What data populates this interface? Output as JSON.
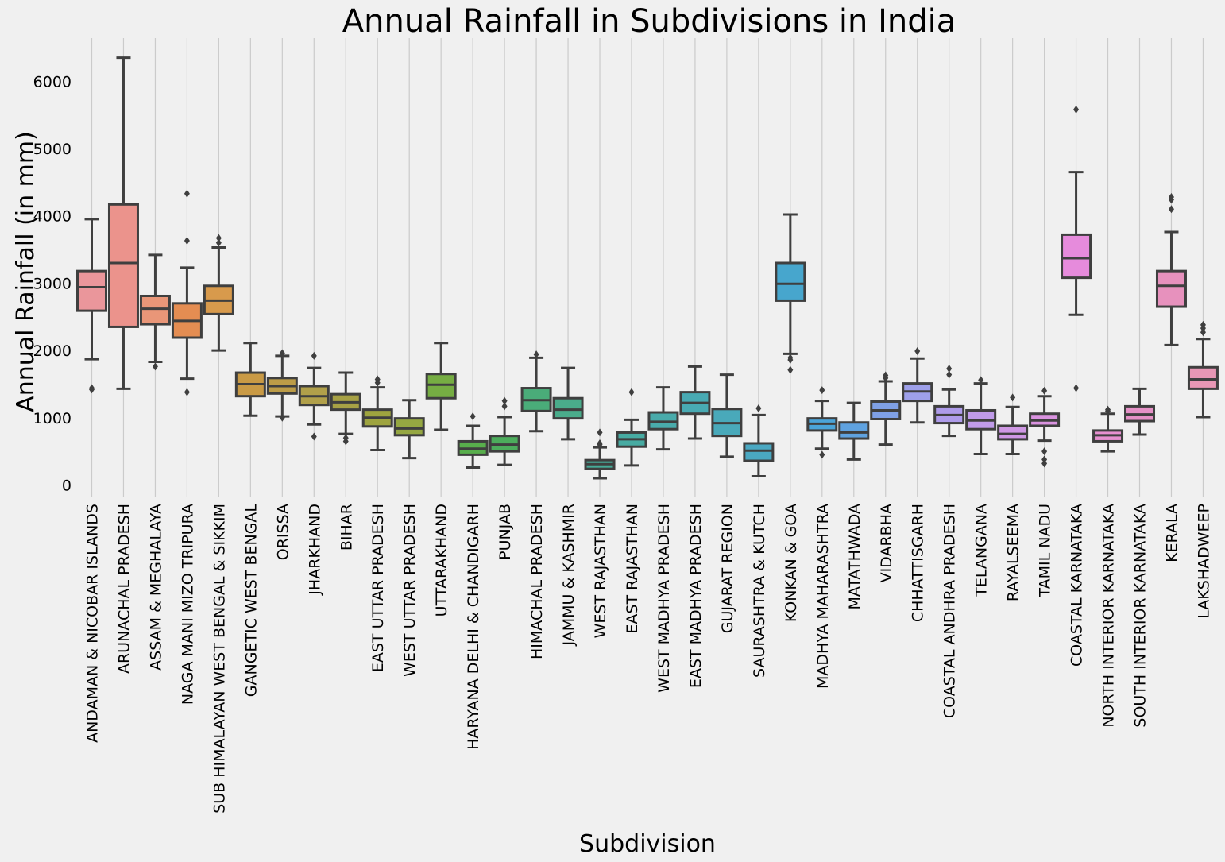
{
  "chart_data": {
    "type": "box",
    "title": "Annual Rainfall in Subdivisions in India",
    "xlabel": "Subdivision",
    "ylabel": "Annual Rainfall (in mm)",
    "ylim": [
      -200,
      6600
    ],
    "yticks": [
      0,
      1000,
      2000,
      3000,
      4000,
      5000,
      6000
    ],
    "grid": "vertical",
    "categories": [
      {
        "name": "ANDAMAN & NICOBAR ISLANDS",
        "color": "#ea969b",
        "q1": 2590,
        "median": 2940,
        "q3": 3180,
        "whisker_low": 1870,
        "whisker_high": 3950,
        "outliers": [
          1440,
          1420
        ]
      },
      {
        "name": "ARUNACHAL PRADESH",
        "color": "#eb938c",
        "q1": 2350,
        "median": 3300,
        "q3": 4170,
        "whisker_low": 1430,
        "whisker_high": 6350,
        "outliers": []
      },
      {
        "name": "ASSAM & MEGHALAYA",
        "color": "#e99678",
        "q1": 2390,
        "median": 2620,
        "q3": 2810,
        "whisker_low": 1830,
        "whisker_high": 3420,
        "outliers": [
          1760
        ]
      },
      {
        "name": "NAGA MANI MIZO TRIPURA",
        "color": "#e48d52",
        "q1": 2190,
        "median": 2440,
        "q3": 2700,
        "whisker_low": 1580,
        "whisker_high": 3230,
        "outliers": [
          4330,
          3630,
          1380
        ]
      },
      {
        "name": "SUB HIMALAYAN WEST BENGAL & SIKKIM",
        "color": "#d89a4c",
        "q1": 2540,
        "median": 2740,
        "q3": 2960,
        "whisker_low": 2000,
        "whisker_high": 3530,
        "outliers": [
          3670,
          3600
        ]
      },
      {
        "name": "GANGETIC WEST BENGAL",
        "color": "#c99a45",
        "q1": 1320,
        "median": 1500,
        "q3": 1670,
        "whisker_low": 1030,
        "whisker_high": 2110,
        "outliers": []
      },
      {
        "name": "ORISSA",
        "color": "#bc9c47",
        "q1": 1360,
        "median": 1470,
        "q3": 1590,
        "whisker_low": 1020,
        "whisker_high": 1920,
        "outliers": [
          1960,
          1000
        ]
      },
      {
        "name": "JHARKHAND",
        "color": "#b1a04a",
        "q1": 1190,
        "median": 1320,
        "q3": 1470,
        "whisker_low": 900,
        "whisker_high": 1740,
        "outliers": [
          1920,
          720
        ]
      },
      {
        "name": "BIHAR",
        "color": "#a7a145",
        "q1": 1120,
        "median": 1230,
        "q3": 1350,
        "whisker_low": 760,
        "whisker_high": 1670,
        "outliers": [
          700,
          650
        ]
      },
      {
        "name": "EAST UTTAR PRADESH",
        "color": "#9ea43f",
        "q1": 870,
        "median": 1000,
        "q3": 1120,
        "whisker_low": 520,
        "whisker_high": 1450,
        "outliers": [
          1570,
          1520
        ]
      },
      {
        "name": "WEST UTTAR PRADESH",
        "color": "#95a742",
        "q1": 740,
        "median": 840,
        "q3": 990,
        "whisker_low": 400,
        "whisker_high": 1260,
        "outliers": []
      },
      {
        "name": "UTTARAKHAND",
        "color": "#76ad43",
        "q1": 1290,
        "median": 1490,
        "q3": 1650,
        "whisker_low": 820,
        "whisker_high": 2110,
        "outliers": []
      },
      {
        "name": "HARYANA DELHI & CHANDIGARH",
        "color": "#58ae4c",
        "q1": 450,
        "median": 540,
        "q3": 650,
        "whisker_low": 260,
        "whisker_high": 880,
        "outliers": [
          1020
        ]
      },
      {
        "name": "PUNJAB",
        "color": "#4cad5c",
        "q1": 500,
        "median": 600,
        "q3": 730,
        "whisker_low": 300,
        "whisker_high": 1010,
        "outliers": [
          1250,
          1170
        ]
      },
      {
        "name": "HIMACHAL PRADESH",
        "color": "#4aac79",
        "q1": 1100,
        "median": 1260,
        "q3": 1440,
        "whisker_low": 800,
        "whisker_high": 1890,
        "outliers": [
          1940
        ]
      },
      {
        "name": "JAMMU & KASHMIR",
        "color": "#4aac8b",
        "q1": 990,
        "median": 1120,
        "q3": 1290,
        "whisker_low": 680,
        "whisker_high": 1740,
        "outliers": []
      },
      {
        "name": "WEST RAJASTHAN",
        "color": "#46ab98",
        "q1": 240,
        "median": 310,
        "q3": 370,
        "whisker_low": 100,
        "whisker_high": 560,
        "outliers": [
          780,
          620,
          600
        ]
      },
      {
        "name": "EAST RAJASTHAN",
        "color": "#47aba2",
        "q1": 570,
        "median": 680,
        "q3": 780,
        "whisker_low": 290,
        "whisker_high": 970,
        "outliers": [
          1380
        ]
      },
      {
        "name": "WEST MADHYA PRADESH",
        "color": "#49abab",
        "q1": 830,
        "median": 940,
        "q3": 1080,
        "whisker_low": 530,
        "whisker_high": 1450,
        "outliers": []
      },
      {
        "name": "EAST MADHYA PRADESH",
        "color": "#48aab3",
        "q1": 1060,
        "median": 1220,
        "q3": 1380,
        "whisker_low": 690,
        "whisker_high": 1760,
        "outliers": []
      },
      {
        "name": "GUJARAT REGION",
        "color": "#49a9ba",
        "q1": 730,
        "median": 920,
        "q3": 1130,
        "whisker_low": 420,
        "whisker_high": 1640,
        "outliers": []
      },
      {
        "name": "SAURASHTRA & KUTCH",
        "color": "#4aa8c2",
        "q1": 360,
        "median": 510,
        "q3": 620,
        "whisker_low": 130,
        "whisker_high": 1040,
        "outliers": [
          1140
        ]
      },
      {
        "name": "KONKAN & GOA",
        "color": "#47a6cd",
        "q1": 2740,
        "median": 2990,
        "q3": 3300,
        "whisker_low": 1950,
        "whisker_high": 4020,
        "outliers": [
          1890,
          1860,
          1710
        ]
      },
      {
        "name": "MADHYA MAHARASHTRA",
        "color": "#4ba4d8",
        "q1": 810,
        "median": 910,
        "q3": 990,
        "whisker_low": 540,
        "whisker_high": 1250,
        "outliers": [
          1410,
          450
        ]
      },
      {
        "name": "MATATHWADA",
        "color": "#5fa2e0",
        "q1": 690,
        "median": 780,
        "q3": 930,
        "whisker_low": 380,
        "whisker_high": 1220,
        "outliers": []
      },
      {
        "name": "VIDARBHA",
        "color": "#7fa0e6",
        "q1": 980,
        "median": 1110,
        "q3": 1240,
        "whisker_low": 600,
        "whisker_high": 1540,
        "outliers": [
          1630,
          1590
        ]
      },
      {
        "name": "CHHATTISGARH",
        "color": "#9ea0ea",
        "q1": 1250,
        "median": 1390,
        "q3": 1510,
        "whisker_low": 930,
        "whisker_high": 1880,
        "outliers": [
          1990
        ]
      },
      {
        "name": "COASTAL ANDHRA PRADESH",
        "color": "#ae9bea",
        "q1": 920,
        "median": 1040,
        "q3": 1170,
        "whisker_low": 730,
        "whisker_high": 1420,
        "outliers": [
          1730,
          1640
        ]
      },
      {
        "name": "TELANGANA",
        "color": "#c09be9",
        "q1": 830,
        "median": 960,
        "q3": 1110,
        "whisker_low": 460,
        "whisker_high": 1510,
        "outliers": [
          1560
        ]
      },
      {
        "name": "RAYALSEEMA",
        "color": "#cf98e4",
        "q1": 680,
        "median": 760,
        "q3": 880,
        "whisker_low": 460,
        "whisker_high": 1160,
        "outliers": [
          1300
        ]
      },
      {
        "name": "TAMIL NADU",
        "color": "#da93e0",
        "q1": 880,
        "median": 960,
        "q3": 1060,
        "whisker_low": 660,
        "whisker_high": 1320,
        "outliers": [
          1400,
          500,
          380,
          320
        ]
      },
      {
        "name": "COASTAL KARNATAKA",
        "color": "#e68bdc",
        "q1": 3080,
        "median": 3370,
        "q3": 3720,
        "whisker_low": 2530,
        "whisker_high": 4650,
        "outliers": [
          5580,
          1440
        ]
      },
      {
        "name": "NORTH INTERIOR KARNATAKA",
        "color": "#e690d0",
        "q1": 650,
        "median": 740,
        "q3": 810,
        "whisker_low": 500,
        "whisker_high": 1060,
        "outliers": [
          1120,
          1100
        ]
      },
      {
        "name": "SOUTH INTERIOR KARNATAKA",
        "color": "#e691c7",
        "q1": 950,
        "median": 1050,
        "q3": 1170,
        "whisker_low": 750,
        "whisker_high": 1430,
        "outliers": []
      },
      {
        "name": "KERALA",
        "color": "#e791bd",
        "q1": 2650,
        "median": 2960,
        "q3": 3180,
        "whisker_low": 2080,
        "whisker_high": 3760,
        "outliers": [
          4280,
          4240,
          4100
        ]
      },
      {
        "name": "LAKSHADWEEP",
        "color": "#e897b5",
        "q1": 1430,
        "median": 1570,
        "q3": 1750,
        "whisker_low": 1010,
        "whisker_high": 2170,
        "outliers": [
          2380,
          2330,
          2270
        ]
      }
    ]
  }
}
